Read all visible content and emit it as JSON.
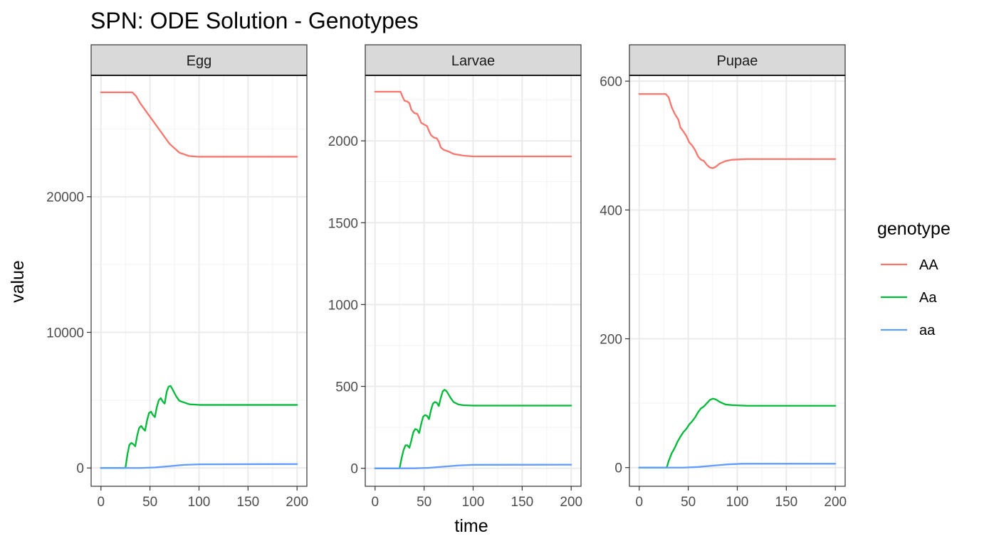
{
  "chart_data": {
    "type": "line",
    "title": "SPN: ODE Solution - Genotypes",
    "xlabel": "time",
    "ylabel": "value",
    "legend": {
      "title": "genotype",
      "placement": "right",
      "entries": [
        {
          "name": "AA",
          "color": "#F8766D"
        },
        {
          "name": "Aa",
          "color": "#00BA38"
        },
        {
          "name": "aa",
          "color": "#619CFF"
        }
      ]
    },
    "x_ticks": [
      0,
      50,
      100,
      150,
      200
    ],
    "xlim": [
      -10,
      210
    ],
    "grid": true,
    "panels": [
      {
        "strip": "Egg",
        "ylim": [
          -1350,
          28950
        ],
        "y_ticks": [
          0,
          10000,
          20000
        ],
        "series": [
          {
            "name": "AA",
            "color": "#F8766D",
            "points": [
              [
                0,
                27700
              ],
              [
                32,
                27700
              ],
              [
                36,
                27400
              ],
              [
                40,
                26900
              ],
              [
                50,
                25900
              ],
              [
                60,
                24900
              ],
              [
                70,
                23900
              ],
              [
                80,
                23250
              ],
              [
                90,
                23000
              ],
              [
                100,
                22950
              ],
              [
                200,
                22950
              ]
            ]
          },
          {
            "name": "Aa",
            "color": "#00BA38",
            "points": [
              [
                0,
                0
              ],
              [
                25,
                0
              ],
              [
                27,
                1000
              ],
              [
                29,
                1700
              ],
              [
                31,
                1850
              ],
              [
                33,
                1750
              ],
              [
                35,
                1600
              ],
              [
                37,
                2400
              ],
              [
                39,
                2950
              ],
              [
                41,
                3100
              ],
              [
                43,
                2900
              ],
              [
                45,
                2750
              ],
              [
                47,
                3500
              ],
              [
                49,
                4050
              ],
              [
                51,
                4150
              ],
              [
                53,
                3900
              ],
              [
                55,
                3750
              ],
              [
                57,
                4500
              ],
              [
                59,
                5000
              ],
              [
                61,
                5150
              ],
              [
                63,
                4900
              ],
              [
                65,
                4750
              ],
              [
                67,
                5600
              ],
              [
                69,
                6000
              ],
              [
                71,
                6050
              ],
              [
                73,
                5800
              ],
              [
                77,
                5250
              ],
              [
                80,
                4950
              ],
              [
                90,
                4700
              ],
              [
                100,
                4650
              ],
              [
                200,
                4650
              ]
            ]
          },
          {
            "name": "aa",
            "color": "#619CFF",
            "points": [
              [
                0,
                0
              ],
              [
                40,
                0
              ],
              [
                55,
                40
              ],
              [
                70,
                130
              ],
              [
                85,
                230
              ],
              [
                100,
                270
              ],
              [
                200,
                290
              ]
            ]
          }
        ]
      },
      {
        "strip": "Larvae",
        "ylim": [
          -110,
          2400
        ],
        "y_ticks": [
          0,
          500,
          1000,
          1500,
          2000
        ],
        "series": [
          {
            "name": "AA",
            "color": "#F8766D",
            "points": [
              [
                0,
                2300
              ],
              [
                26,
                2300
              ],
              [
                28,
                2270
              ],
              [
                30,
                2245
              ],
              [
                33,
                2240
              ],
              [
                35,
                2230
              ],
              [
                37,
                2190
              ],
              [
                40,
                2170
              ],
              [
                43,
                2165
              ],
              [
                45,
                2140
              ],
              [
                47,
                2110
              ],
              [
                50,
                2100
              ],
              [
                53,
                2090
              ],
              [
                55,
                2060
              ],
              [
                57,
                2035
              ],
              [
                60,
                2020
              ],
              [
                63,
                2015
              ],
              [
                65,
                1995
              ],
              [
                67,
                1960
              ],
              [
                70,
                1945
              ],
              [
                75,
                1935
              ],
              [
                80,
                1920
              ],
              [
                90,
                1910
              ],
              [
                100,
                1905
              ],
              [
                200,
                1905
              ]
            ]
          },
          {
            "name": "Aa",
            "color": "#00BA38",
            "points": [
              [
                0,
                0
              ],
              [
                25,
                0
              ],
              [
                27,
                60
              ],
              [
                29,
                110
              ],
              [
                31,
                140
              ],
              [
                33,
                140
              ],
              [
                35,
                125
              ],
              [
                37,
                170
              ],
              [
                39,
                220
              ],
              [
                41,
                240
              ],
              [
                43,
                235
              ],
              [
                45,
                215
              ],
              [
                47,
                270
              ],
              [
                49,
                315
              ],
              [
                51,
                325
              ],
              [
                53,
                320
              ],
              [
                55,
                300
              ],
              [
                57,
                355
              ],
              [
                59,
                395
              ],
              [
                61,
                405
              ],
              [
                63,
                400
              ],
              [
                65,
                380
              ],
              [
                67,
                430
              ],
              [
                69,
                470
              ],
              [
                71,
                480
              ],
              [
                73,
                470
              ],
              [
                77,
                430
              ],
              [
                80,
                405
              ],
              [
                85,
                390
              ],
              [
                90,
                385
              ],
              [
                100,
                383
              ],
              [
                200,
                383
              ]
            ]
          },
          {
            "name": "aa",
            "color": "#619CFF",
            "points": [
              [
                0,
                0
              ],
              [
                40,
                0
              ],
              [
                55,
                3
              ],
              [
                70,
                10
              ],
              [
                85,
                17
              ],
              [
                100,
                21
              ],
              [
                200,
                22
              ]
            ]
          }
        ]
      },
      {
        "strip": "Pupae",
        "ylim": [
          -29,
          609
        ],
        "y_ticks": [
          0,
          200,
          400,
          600
        ],
        "series": [
          {
            "name": "AA",
            "color": "#F8766D",
            "points": [
              [
                0,
                580
              ],
              [
                27,
                580
              ],
              [
                30,
                575
              ],
              [
                33,
                560
              ],
              [
                36,
                550
              ],
              [
                40,
                540
              ],
              [
                42,
                528
              ],
              [
                45,
                522
              ],
              [
                48,
                515
              ],
              [
                51,
                505
              ],
              [
                54,
                500
              ],
              [
                57,
                493
              ],
              [
                60,
                483
              ],
              [
                63,
                478
              ],
              [
                66,
                476
              ],
              [
                69,
                470
              ],
              [
                72,
                466
              ],
              [
                75,
                465
              ],
              [
                78,
                467
              ],
              [
                82,
                472
              ],
              [
                88,
                476
              ],
              [
                95,
                478
              ],
              [
                110,
                479
              ],
              [
                200,
                479
              ]
            ]
          },
          {
            "name": "Aa",
            "color": "#00BA38",
            "points": [
              [
                0,
                0
              ],
              [
                28,
                0
              ],
              [
                30,
                10
              ],
              [
                33,
                22
              ],
              [
                36,
                30
              ],
              [
                39,
                40
              ],
              [
                42,
                48
              ],
              [
                45,
                55
              ],
              [
                48,
                60
              ],
              [
                51,
                67
              ],
              [
                54,
                72
              ],
              [
                57,
                78
              ],
              [
                60,
                86
              ],
              [
                63,
                92
              ],
              [
                66,
                95
              ],
              [
                69,
                100
              ],
              [
                72,
                105
              ],
              [
                75,
                107
              ],
              [
                78,
                106
              ],
              [
                82,
                102
              ],
              [
                88,
                98
              ],
              [
                95,
                97
              ],
              [
                110,
                96
              ],
              [
                200,
                96
              ]
            ]
          },
          {
            "name": "aa",
            "color": "#619CFF",
            "points": [
              [
                0,
                0
              ],
              [
                45,
                0
              ],
              [
                60,
                1
              ],
              [
                75,
                3
              ],
              [
                90,
                5
              ],
              [
                105,
                6
              ],
              [
                200,
                6
              ]
            ]
          }
        ]
      }
    ]
  }
}
